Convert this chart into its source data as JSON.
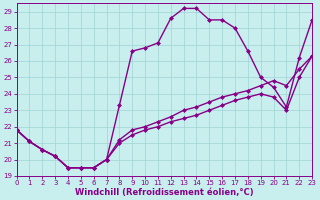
{
  "xlabel": "Windchill (Refroidissement éolien,°C)",
  "xlim": [
    0,
    23
  ],
  "ylim": [
    19,
    29.5
  ],
  "xticks": [
    0,
    1,
    2,
    3,
    4,
    5,
    6,
    7,
    8,
    9,
    10,
    11,
    12,
    13,
    14,
    15,
    16,
    17,
    18,
    19,
    20,
    21,
    22,
    23
  ],
  "yticks": [
    19,
    20,
    21,
    22,
    23,
    24,
    25,
    26,
    27,
    28,
    29
  ],
  "bg_color": "#c8eeee",
  "grid_color": "#9fd4d4",
  "line_color": "#880088",
  "line1_y": [
    21.8,
    21.1,
    20.6,
    20.2,
    19.5,
    19.5,
    19.5,
    20.0,
    23.3,
    26.6,
    26.8,
    27.1,
    28.6,
    29.2,
    29.2,
    28.5,
    28.5,
    28.0,
    26.6,
    25.0,
    24.4,
    23.2,
    26.2,
    28.5
  ],
  "line2_y": [
    21.8,
    21.1,
    20.6,
    20.2,
    19.5,
    19.5,
    19.5,
    20.0,
    21.2,
    21.8,
    22.0,
    22.3,
    22.6,
    23.0,
    23.2,
    23.5,
    23.8,
    24.0,
    24.2,
    24.5,
    24.8,
    24.5,
    25.5,
    26.3
  ],
  "line3_y": [
    21.8,
    21.1,
    20.6,
    20.2,
    19.5,
    19.5,
    19.5,
    20.0,
    21.0,
    21.5,
    21.8,
    22.0,
    22.3,
    22.5,
    22.7,
    23.0,
    23.3,
    23.6,
    23.8,
    24.0,
    23.8,
    23.0,
    25.0,
    26.3
  ],
  "marker": "D",
  "markersize": 2.0,
  "linewidth": 1.0,
  "tick_fontsize": 5.0,
  "label_fontsize": 6.0
}
